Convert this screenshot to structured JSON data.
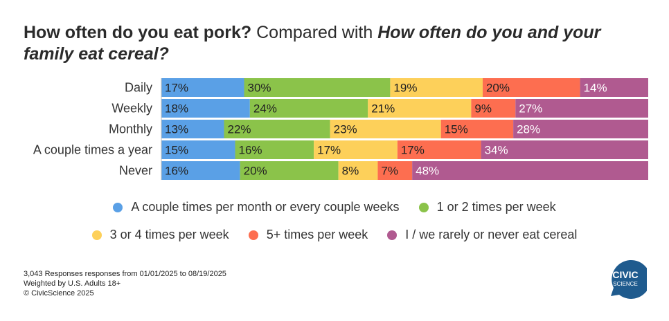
{
  "title": {
    "question1": "How often do you eat pork?",
    "connector": " Compared with ",
    "question2": "How often do you and your family eat cereal?"
  },
  "chart_data": {
    "type": "bar",
    "orientation": "horizontal",
    "stacked": true,
    "percent": true,
    "categories": [
      "Daily",
      "Weekly",
      "Monthly",
      "A couple times a year",
      "Never"
    ],
    "series": [
      {
        "name": "A couple times per month or every couple weeks",
        "color": "#5aa0e6",
        "values": [
          17,
          18,
          13,
          15,
          16
        ]
      },
      {
        "name": "1 or 2 times per week",
        "color": "#8bc34a",
        "values": [
          30,
          24,
          22,
          16,
          20
        ]
      },
      {
        "name": "3 or 4 times per week",
        "color": "#fdd05a",
        "values": [
          19,
          21,
          23,
          17,
          8
        ]
      },
      {
        "name": "5+ times per week",
        "color": "#fd6e50",
        "values": [
          20,
          9,
          15,
          17,
          7
        ]
      },
      {
        "name": "I / we rarely or never eat cereal",
        "color": "#b05a90",
        "values": [
          14,
          27,
          28,
          34,
          48
        ]
      }
    ],
    "xlim": [
      0,
      100
    ],
    "legend_position": "bottom",
    "grid": false
  },
  "legend_rows": [
    [
      0,
      1
    ],
    [
      2,
      3,
      4
    ]
  ],
  "footnotes": [
    "3,043 Responses responses from 01/01/2025 to 08/19/2025",
    "Weighted by U.S. Adults 18+",
    "© CivicScience 2025"
  ],
  "logo": {
    "line1": "CIVIC",
    "line2": "SCIENCE",
    "color": "#1f5b8e"
  }
}
